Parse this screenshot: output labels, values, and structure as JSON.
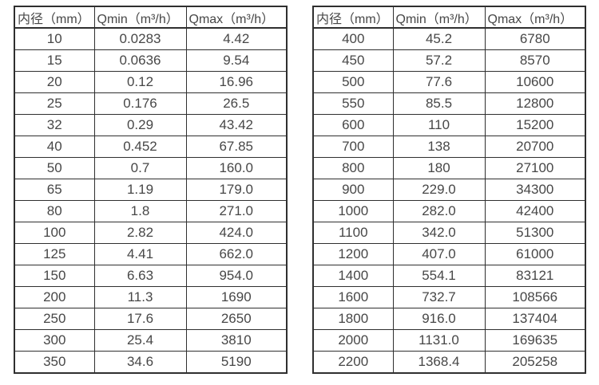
{
  "page": {
    "background_color": "#ffffff",
    "border_color": "#2f2f2f",
    "text_color": "#474747"
  },
  "chart_data": [
    {
      "type": "table",
      "name": "flow-rate-spec-table-small-diameters",
      "columns": [
        "内径（mm）",
        "Qmin（m³/h）",
        "Qmax（m³/h）"
      ],
      "rows": [
        [
          "10",
          "0.0283",
          "4.42"
        ],
        [
          "15",
          "0.0636",
          "9.54"
        ],
        [
          "20",
          "0.12",
          "16.96"
        ],
        [
          "25",
          "0.176",
          "26.5"
        ],
        [
          "32",
          "0.29",
          "43.42"
        ],
        [
          "40",
          "0.452",
          "67.85"
        ],
        [
          "50",
          "0.7",
          "160.0"
        ],
        [
          "65",
          "1.19",
          "179.0"
        ],
        [
          "80",
          "1.8",
          "271.0"
        ],
        [
          "100",
          "2.82",
          "424.0"
        ],
        [
          "125",
          "4.41",
          "662.0"
        ],
        [
          "150",
          "6.63",
          "954.0"
        ],
        [
          "200",
          "11.3",
          "1690"
        ],
        [
          "250",
          "17.6",
          "2650"
        ],
        [
          "300",
          "25.4",
          "3810"
        ],
        [
          "350",
          "34.6",
          "5190"
        ]
      ]
    },
    {
      "type": "table",
      "name": "flow-rate-spec-table-large-diameters",
      "columns": [
        "内径（mm）",
        "Qmin（m³/h）",
        "Qmax（m³/h）"
      ],
      "rows": [
        [
          "400",
          "45.2",
          "6780"
        ],
        [
          "450",
          "57.2",
          "8570"
        ],
        [
          "500",
          "77.6",
          "10600"
        ],
        [
          "550",
          "85.5",
          "12800"
        ],
        [
          "600",
          "110",
          "15200"
        ],
        [
          "700",
          "138",
          "20700"
        ],
        [
          "800",
          "180",
          "27100"
        ],
        [
          "900",
          "229.0",
          "34300"
        ],
        [
          "1000",
          "282.0",
          "42400"
        ],
        [
          "1100",
          "342.0",
          "51300"
        ],
        [
          "1200",
          "407.0",
          "61000"
        ],
        [
          "1400",
          "554.1",
          "83121"
        ],
        [
          "1600",
          "732.7",
          "108566"
        ],
        [
          "1800",
          "916.0",
          "137404"
        ],
        [
          "2000",
          "1131.0",
          "169635"
        ],
        [
          "2200",
          "1368.4",
          "205258"
        ]
      ]
    }
  ]
}
